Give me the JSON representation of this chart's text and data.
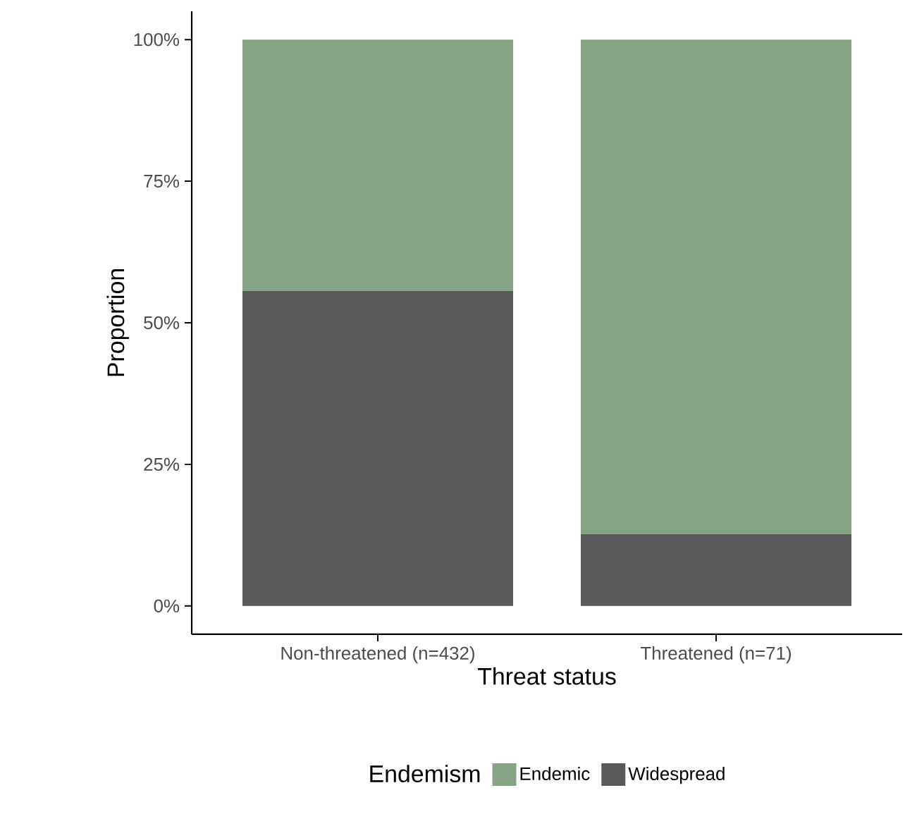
{
  "chart_data": {
    "type": "bar",
    "stacked": true,
    "xlabel": "Threat status",
    "ylabel": "Proportion",
    "legend_title": "Endemism",
    "legend": "bottom",
    "grid": false,
    "categories": [
      "Non-threatened (n=432)",
      "Threatened (n=71)"
    ],
    "series": [
      {
        "name": "Widespread",
        "color": "#595959",
        "values": [
          55.6,
          12.7
        ]
      },
      {
        "name": "Endemic",
        "color": "#87a385",
        "values": [
          44.4,
          87.3
        ]
      }
    ],
    "ylim": [
      -5,
      105
    ],
    "yticks": [
      {
        "value": 0,
        "label": "0%"
      },
      {
        "value": 25,
        "label": "25%"
      },
      {
        "value": 50,
        "label": "50%"
      },
      {
        "value": 75,
        "label": "75%"
      },
      {
        "value": 100,
        "label": "100%"
      }
    ]
  }
}
